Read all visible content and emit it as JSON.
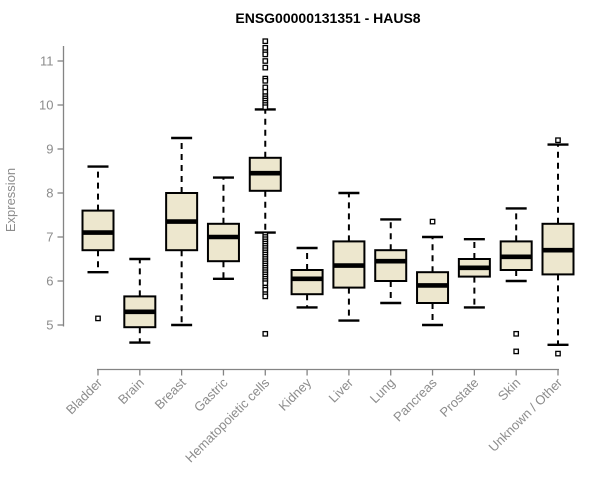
{
  "chart_data": {
    "type": "boxplot",
    "title": "ENSG00000131351 - HAUS8",
    "ylabel": "Expression",
    "xlabel": "",
    "ylim": [
      4.2,
      11.6
    ],
    "yticks": [
      5,
      6,
      7,
      8,
      9,
      10,
      11
    ],
    "grid": false,
    "legend": false,
    "categories": [
      "Bladder",
      "Brain",
      "Breast",
      "Gastric",
      "Hematopoietic cells",
      "Kidney",
      "Liver",
      "Lung",
      "Pancreas",
      "Prostate",
      "Skin",
      "Unknown / Other"
    ],
    "series": [
      {
        "name": "Bladder",
        "whisker_low": 6.2,
        "q1": 6.7,
        "median": 7.1,
        "q3": 7.6,
        "whisker_high": 8.6,
        "outliers": [
          5.15
        ]
      },
      {
        "name": "Brain",
        "whisker_low": 4.6,
        "q1": 4.95,
        "median": 5.3,
        "q3": 5.65,
        "whisker_high": 6.5,
        "outliers": []
      },
      {
        "name": "Breast",
        "whisker_low": 5.0,
        "q1": 6.7,
        "median": 7.35,
        "q3": 8.0,
        "whisker_high": 9.25,
        "outliers": []
      },
      {
        "name": "Gastric",
        "whisker_low": 6.05,
        "q1": 6.45,
        "median": 7.0,
        "q3": 7.3,
        "whisker_high": 8.35,
        "outliers": []
      },
      {
        "name": "Hematopoietic cells",
        "whisker_low": 7.1,
        "q1": 8.05,
        "median": 8.45,
        "q3": 8.8,
        "whisker_high": 9.9,
        "outliers": [
          11.45,
          11.3,
          11.2,
          11.15,
          11.0,
          10.85,
          10.6,
          10.55,
          10.4,
          10.3,
          10.2,
          10.15,
          10.1,
          10.05,
          10.0,
          9.95,
          7.05,
          7.0,
          6.95,
          6.9,
          6.85,
          6.8,
          6.75,
          6.7,
          6.65,
          6.6,
          6.55,
          6.5,
          6.45,
          6.4,
          6.35,
          6.3,
          6.25,
          6.2,
          6.15,
          6.1,
          6.05,
          6.0,
          5.95,
          5.85,
          5.8,
          5.7,
          5.65,
          4.8
        ]
      },
      {
        "name": "Kidney",
        "whisker_low": 5.4,
        "q1": 5.7,
        "median": 6.05,
        "q3": 6.25,
        "whisker_high": 6.75,
        "outliers": []
      },
      {
        "name": "Liver",
        "whisker_low": 5.1,
        "q1": 5.85,
        "median": 6.35,
        "q3": 6.9,
        "whisker_high": 8.0,
        "outliers": []
      },
      {
        "name": "Lung",
        "whisker_low": 5.5,
        "q1": 6.0,
        "median": 6.45,
        "q3": 6.7,
        "whisker_high": 7.4,
        "outliers": []
      },
      {
        "name": "Pancreas",
        "whisker_low": 5.0,
        "q1": 5.5,
        "median": 5.9,
        "q3": 6.2,
        "whisker_high": 7.0,
        "outliers": [
          7.35
        ]
      },
      {
        "name": "Prostate",
        "whisker_low": 5.4,
        "q1": 6.1,
        "median": 6.3,
        "q3": 6.5,
        "whisker_high": 6.95,
        "outliers": []
      },
      {
        "name": "Skin",
        "whisker_low": 6.0,
        "q1": 6.25,
        "median": 6.55,
        "q3": 6.9,
        "whisker_high": 7.65,
        "outliers": [
          4.8,
          4.4
        ]
      },
      {
        "name": "Unknown / Other",
        "whisker_low": 4.55,
        "q1": 6.15,
        "median": 6.7,
        "q3": 7.3,
        "whisker_high": 9.1,
        "outliers": [
          9.2,
          4.35
        ]
      }
    ],
    "colors": {
      "box_fill": "#EDE7CE",
      "box_stroke": "#000000",
      "median": "#000000",
      "whisker": "#000000",
      "axis": "#848484",
      "tick_text": "#8c8c8c",
      "title_text": "#000000",
      "background": "#ffffff"
    }
  }
}
